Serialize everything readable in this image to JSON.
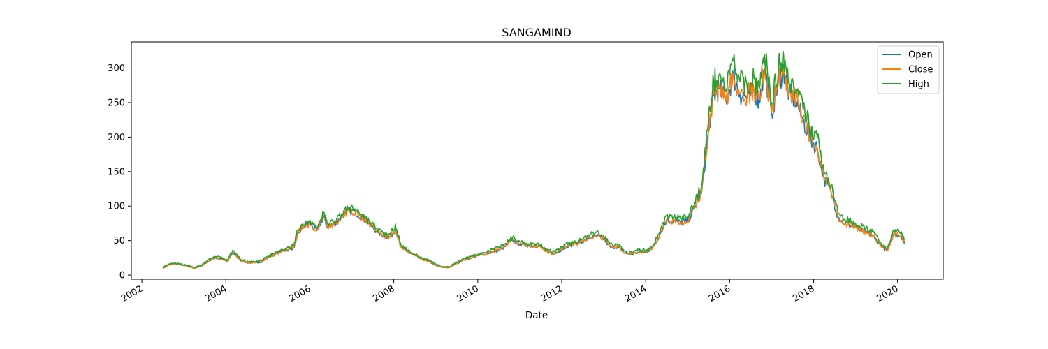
{
  "chart_data": {
    "type": "line",
    "title": "SANGAMIND",
    "xlabel": "Date",
    "ylabel": "",
    "x_axis": "date",
    "xlim": [
      "2001-10-01",
      "2021-02-01"
    ],
    "ylim": [
      -6,
      338
    ],
    "x_ticks": [
      "2002-01-01",
      "2004-01-01",
      "2006-01-01",
      "2008-01-01",
      "2010-01-01",
      "2012-01-01",
      "2014-01-01",
      "2016-01-01",
      "2018-01-01",
      "2020-01-01"
    ],
    "x_tick_labels": [
      "2002",
      "2004",
      "2006",
      "2008",
      "2010",
      "2012",
      "2014",
      "2016",
      "2018",
      "2020"
    ],
    "y_ticks": [
      0,
      50,
      100,
      150,
      200,
      250,
      300
    ],
    "y_tick_labels": [
      "0",
      "50",
      "100",
      "150",
      "200",
      "250",
      "300"
    ],
    "grid": false,
    "legend": "top-right",
    "series": [
      {
        "name": "Open",
        "color": "#1f77b4"
      },
      {
        "name": "Close",
        "color": "#ff7f0e"
      },
      {
        "name": "High",
        "color": "#2ca02c"
      }
    ],
    "dates": [
      "2002-07-01",
      "2002-08-15",
      "2002-10-01",
      "2002-12-01",
      "2003-02-01",
      "2003-04-01",
      "2003-06-01",
      "2003-08-01",
      "2003-10-01",
      "2003-12-01",
      "2004-01-15",
      "2004-03-01",
      "2004-05-01",
      "2004-07-01",
      "2004-09-01",
      "2004-11-01",
      "2005-01-01",
      "2005-03-01",
      "2005-05-01",
      "2005-07-01",
      "2005-08-15",
      "2005-09-15",
      "2005-11-01",
      "2006-01-01",
      "2006-03-01",
      "2006-05-01",
      "2006-06-01",
      "2006-08-01",
      "2006-10-01",
      "2006-12-01",
      "2007-02-01",
      "2007-04-01",
      "2007-06-01",
      "2007-08-01",
      "2007-10-01",
      "2007-12-01",
      "2008-01-15",
      "2008-03-01",
      "2008-05-01",
      "2008-07-01",
      "2008-09-01",
      "2008-11-01",
      "2009-01-01",
      "2009-03-01",
      "2009-05-01",
      "2009-07-01",
      "2009-09-01",
      "2009-11-01",
      "2010-01-01",
      "2010-03-01",
      "2010-05-01",
      "2010-07-01",
      "2010-09-01",
      "2010-11-01",
      "2011-01-01",
      "2011-03-01",
      "2011-05-01",
      "2011-07-01",
      "2011-09-01",
      "2011-11-01",
      "2012-01-01",
      "2012-03-01",
      "2012-05-01",
      "2012-07-01",
      "2012-09-01",
      "2012-11-01",
      "2013-01-01",
      "2013-03-01",
      "2013-05-01",
      "2013-07-01",
      "2013-09-01",
      "2013-11-01",
      "2014-01-01",
      "2014-03-01",
      "2014-05-01",
      "2014-07-01",
      "2014-09-01",
      "2014-11-01",
      "2015-01-01",
      "2015-03-01",
      "2015-05-01",
      "2015-07-01",
      "2015-08-15",
      "2015-10-01",
      "2015-12-01",
      "2016-02-01",
      "2016-04-01",
      "2016-06-01",
      "2016-08-01",
      "2016-09-15",
      "2016-11-01",
      "2017-01-01",
      "2017-03-01",
      "2017-04-15",
      "2017-06-01",
      "2017-08-01",
      "2017-10-01",
      "2017-12-01",
      "2018-02-01",
      "2018-04-01",
      "2018-06-01",
      "2018-08-01",
      "2018-10-01",
      "2018-12-01",
      "2019-02-01",
      "2019-04-01",
      "2019-06-01",
      "2019-08-01",
      "2019-10-01",
      "2019-12-01",
      "2020-02-01",
      "2020-03-01"
    ],
    "high": [
      11,
      15,
      17,
      16,
      14,
      11,
      14,
      22,
      27,
      25,
      21,
      36,
      24,
      19,
      19,
      21,
      27,
      32,
      38,
      39,
      43,
      65,
      74,
      80,
      68,
      90,
      74,
      78,
      88,
      97,
      95,
      88,
      78,
      68,
      60,
      58,
      74,
      44,
      36,
      30,
      25,
      22,
      16,
      12,
      12,
      19,
      24,
      27,
      30,
      32,
      37,
      40,
      46,
      55,
      48,
      46,
      45,
      44,
      36,
      34,
      40,
      46,
      48,
      52,
      58,
      62,
      56,
      45,
      44,
      35,
      32,
      36,
      36,
      42,
      62,
      86,
      84,
      82,
      84,
      105,
      130,
      225,
      280,
      290,
      270,
      310,
      280,
      275,
      285,
      270,
      320,
      250,
      300,
      320,
      280,
      270,
      240,
      215,
      200,
      150,
      130,
      90,
      80,
      78,
      72,
      68,
      62,
      48,
      38,
      65,
      62,
      52
    ],
    "close": [
      10,
      14,
      16,
      15,
      13,
      10,
      13,
      20,
      25,
      23,
      19,
      34,
      22,
      18,
      18,
      19,
      25,
      30,
      35,
      37,
      40,
      58,
      70,
      75,
      64,
      86,
      70,
      74,
      84,
      93,
      91,
      84,
      74,
      64,
      57,
      55,
      68,
      41,
      34,
      28,
      23,
      20,
      14,
      11,
      11,
      17,
      22,
      25,
      28,
      30,
      34,
      37,
      43,
      51,
      45,
      43,
      42,
      41,
      33,
      31,
      37,
      43,
      45,
      49,
      54,
      58,
      52,
      42,
      41,
      32,
      30,
      33,
      33,
      39,
      58,
      80,
      78,
      76,
      78,
      98,
      120,
      210,
      262,
      272,
      254,
      292,
      264,
      260,
      268,
      255,
      300,
      236,
      282,
      300,
      264,
      255,
      226,
      200,
      186,
      140,
      122,
      84,
      74,
      72,
      66,
      63,
      57,
      44,
      35,
      60,
      57,
      48
    ],
    "open": [
      10,
      14,
      16,
      15,
      13,
      10,
      13,
      20,
      25,
      23,
      19,
      33,
      22,
      18,
      18,
      19,
      25,
      30,
      35,
      37,
      40,
      57,
      70,
      75,
      64,
      85,
      70,
      74,
      84,
      93,
      91,
      84,
      74,
      64,
      57,
      55,
      67,
      41,
      34,
      28,
      23,
      20,
      14,
      11,
      11,
      17,
      22,
      25,
      28,
      30,
      33,
      35,
      42,
      50,
      45,
      43,
      42,
      41,
      33,
      31,
      37,
      43,
      45,
      49,
      54,
      57,
      52,
      40,
      41,
      32,
      30,
      33,
      33,
      39,
      58,
      80,
      78,
      76,
      78,
      97,
      118,
      208,
      260,
      270,
      252,
      290,
      262,
      258,
      266,
      253,
      298,
      234,
      280,
      298,
      262,
      253,
      224,
      198,
      184,
      139,
      121,
      84,
      74,
      72,
      66,
      62,
      57,
      44,
      35,
      60,
      57,
      48
    ]
  }
}
